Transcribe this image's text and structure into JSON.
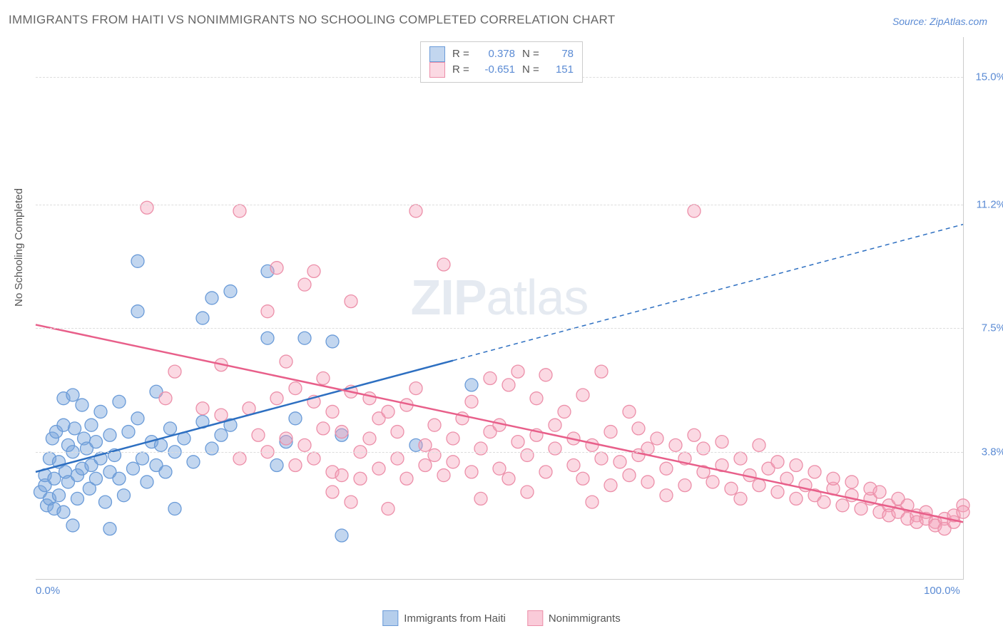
{
  "title": "IMMIGRANTS FROM HAITI VS NONIMMIGRANTS NO SCHOOLING COMPLETED CORRELATION CHART",
  "source": "Source: ZipAtlas.com",
  "watermark_bold": "ZIP",
  "watermark_light": "atlas",
  "y_axis_label": "No Schooling Completed",
  "chart": {
    "type": "scatter",
    "background_color": "#ffffff",
    "grid_color": "#dddddd",
    "axis_color": "#cccccc",
    "xlim": [
      0,
      100
    ],
    "ylim": [
      0,
      16.2
    ],
    "x_ticks": [
      {
        "v": 0,
        "label": "0.0%"
      },
      {
        "v": 100,
        "label": "100.0%"
      }
    ],
    "y_ticks": [
      {
        "v": 3.8,
        "label": "3.8%"
      },
      {
        "v": 7.5,
        "label": "7.5%"
      },
      {
        "v": 11.2,
        "label": "11.2%"
      },
      {
        "v": 15.0,
        "label": "15.0%"
      }
    ],
    "series": [
      {
        "name": "Immigrants from Haiti",
        "fill": "rgba(120,165,220,0.45)",
        "stroke": "#6a9bd8",
        "line_color": "#2d6fc1",
        "line_width": 2.5,
        "marker_radius": 9,
        "R": "0.378",
        "N": "78",
        "trend": {
          "x1": 0,
          "y1": 3.2,
          "x2": 100,
          "y2": 10.6,
          "solid_until_x": 45
        },
        "points": [
          [
            0.5,
            2.6
          ],
          [
            1,
            2.8
          ],
          [
            1,
            3.1
          ],
          [
            1.2,
            2.2
          ],
          [
            1.5,
            3.6
          ],
          [
            1.5,
            2.4
          ],
          [
            1.8,
            4.2
          ],
          [
            2,
            2.1
          ],
          [
            2,
            3.0
          ],
          [
            2.2,
            4.4
          ],
          [
            2.5,
            2.5
          ],
          [
            2.5,
            3.5
          ],
          [
            3,
            2.0
          ],
          [
            3,
            4.6
          ],
          [
            3,
            5.4
          ],
          [
            3.2,
            3.2
          ],
          [
            3.5,
            2.9
          ],
          [
            3.5,
            4.0
          ],
          [
            4,
            5.5
          ],
          [
            4,
            1.6
          ],
          [
            4,
            3.8
          ],
          [
            4.2,
            4.5
          ],
          [
            4.5,
            3.1
          ],
          [
            4.5,
            2.4
          ],
          [
            5,
            5.2
          ],
          [
            5,
            3.3
          ],
          [
            5.2,
            4.2
          ],
          [
            5.5,
            3.9
          ],
          [
            5.8,
            2.7
          ],
          [
            6,
            3.4
          ],
          [
            6,
            4.6
          ],
          [
            6.5,
            3.0
          ],
          [
            6.5,
            4.1
          ],
          [
            7,
            5.0
          ],
          [
            7,
            3.6
          ],
          [
            7.5,
            2.3
          ],
          [
            8,
            4.3
          ],
          [
            8,
            3.2
          ],
          [
            8,
            1.5
          ],
          [
            8.5,
            3.7
          ],
          [
            9,
            5.3
          ],
          [
            9,
            3.0
          ],
          [
            9.5,
            2.5
          ],
          [
            10,
            4.4
          ],
          [
            10.5,
            3.3
          ],
          [
            11,
            8.0
          ],
          [
            11,
            4.8
          ],
          [
            11,
            9.5
          ],
          [
            11.5,
            3.6
          ],
          [
            12,
            2.9
          ],
          [
            12.5,
            4.1
          ],
          [
            13,
            3.4
          ],
          [
            13,
            5.6
          ],
          [
            13.5,
            4.0
          ],
          [
            14,
            3.2
          ],
          [
            14.5,
            4.5
          ],
          [
            15,
            3.8
          ],
          [
            15,
            2.1
          ],
          [
            16,
            4.2
          ],
          [
            17,
            3.5
          ],
          [
            18,
            7.8
          ],
          [
            18,
            4.7
          ],
          [
            19,
            8.4
          ],
          [
            19,
            3.9
          ],
          [
            20,
            4.3
          ],
          [
            21,
            8.6
          ],
          [
            21,
            4.6
          ],
          [
            25,
            9.2
          ],
          [
            25,
            7.2
          ],
          [
            26,
            3.4
          ],
          [
            27,
            4.1
          ],
          [
            28,
            4.8
          ],
          [
            29,
            7.2
          ],
          [
            32,
            7.1
          ],
          [
            33,
            1.3
          ],
          [
            33,
            4.3
          ],
          [
            41,
            4.0
          ],
          [
            47,
            5.8
          ]
        ]
      },
      {
        "name": "Nonimmigrants",
        "fill": "rgba(245,160,185,0.40)",
        "stroke": "#ec8fa9",
        "line_color": "#e85f8a",
        "line_width": 2.5,
        "marker_radius": 9,
        "R": "-0.651",
        "N": "151",
        "trend": {
          "x1": 0,
          "y1": 7.6,
          "x2": 100,
          "y2": 1.7,
          "solid_until_x": 100
        },
        "points": [
          [
            12,
            11.1
          ],
          [
            14,
            5.4
          ],
          [
            15,
            6.2
          ],
          [
            18,
            5.1
          ],
          [
            20,
            4.9
          ],
          [
            20,
            6.4
          ],
          [
            22,
            3.6
          ],
          [
            22,
            11.0
          ],
          [
            23,
            5.1
          ],
          [
            24,
            4.3
          ],
          [
            25,
            3.8
          ],
          [
            25,
            8.0
          ],
          [
            26,
            5.4
          ],
          [
            26,
            9.3
          ],
          [
            27,
            4.2
          ],
          [
            27,
            6.5
          ],
          [
            28,
            5.7
          ],
          [
            28,
            3.4
          ],
          [
            29,
            4.0
          ],
          [
            29,
            8.8
          ],
          [
            30,
            3.6
          ],
          [
            30,
            5.3
          ],
          [
            30,
            9.2
          ],
          [
            31,
            4.5
          ],
          [
            31,
            6.0
          ],
          [
            32,
            3.2
          ],
          [
            32,
            5.0
          ],
          [
            32,
            2.6
          ],
          [
            33,
            4.4
          ],
          [
            33,
            3.1
          ],
          [
            34,
            2.3
          ],
          [
            34,
            5.6
          ],
          [
            34,
            8.3
          ],
          [
            35,
            3.8
          ],
          [
            35,
            3.0
          ],
          [
            36,
            4.2
          ],
          [
            36,
            5.4
          ],
          [
            37,
            3.3
          ],
          [
            37,
            4.8
          ],
          [
            38,
            2.1
          ],
          [
            38,
            5.0
          ],
          [
            39,
            3.6
          ],
          [
            39,
            4.4
          ],
          [
            40,
            5.2
          ],
          [
            40,
            3.0
          ],
          [
            41,
            5.7
          ],
          [
            41,
            11.0
          ],
          [
            42,
            3.4
          ],
          [
            42,
            4.0
          ],
          [
            43,
            3.7
          ],
          [
            43,
            4.6
          ],
          [
            44,
            3.1
          ],
          [
            44,
            9.4
          ],
          [
            45,
            4.2
          ],
          [
            45,
            3.5
          ],
          [
            46,
            4.8
          ],
          [
            47,
            3.2
          ],
          [
            47,
            5.3
          ],
          [
            48,
            3.9
          ],
          [
            48,
            2.4
          ],
          [
            49,
            4.4
          ],
          [
            49,
            6.0
          ],
          [
            50,
            3.3
          ],
          [
            50,
            4.6
          ],
          [
            51,
            5.8
          ],
          [
            51,
            3.0
          ],
          [
            52,
            4.1
          ],
          [
            52,
            6.2
          ],
          [
            53,
            3.7
          ],
          [
            53,
            2.6
          ],
          [
            54,
            4.3
          ],
          [
            54,
            5.4
          ],
          [
            55,
            3.2
          ],
          [
            55,
            6.1
          ],
          [
            56,
            3.9
          ],
          [
            56,
            4.6
          ],
          [
            57,
            5.0
          ],
          [
            58,
            3.4
          ],
          [
            58,
            4.2
          ],
          [
            59,
            5.5
          ],
          [
            59,
            3.0
          ],
          [
            60,
            4.0
          ],
          [
            60,
            2.3
          ],
          [
            61,
            3.6
          ],
          [
            61,
            6.2
          ],
          [
            62,
            2.8
          ],
          [
            62,
            4.4
          ],
          [
            63,
            3.5
          ],
          [
            64,
            3.1
          ],
          [
            64,
            5.0
          ],
          [
            65,
            3.7
          ],
          [
            65,
            4.5
          ],
          [
            66,
            2.9
          ],
          [
            66,
            3.9
          ],
          [
            67,
            4.2
          ],
          [
            68,
            3.3
          ],
          [
            68,
            2.5
          ],
          [
            69,
            4.0
          ],
          [
            70,
            3.6
          ],
          [
            70,
            2.8
          ],
          [
            71,
            4.3
          ],
          [
            71,
            11.0
          ],
          [
            72,
            3.2
          ],
          [
            72,
            3.9
          ],
          [
            73,
            2.9
          ],
          [
            74,
            4.1
          ],
          [
            74,
            3.4
          ],
          [
            75,
            2.7
          ],
          [
            76,
            3.6
          ],
          [
            76,
            2.4
          ],
          [
            77,
            3.1
          ],
          [
            78,
            2.8
          ],
          [
            78,
            4.0
          ],
          [
            79,
            3.3
          ],
          [
            80,
            2.6
          ],
          [
            80,
            3.5
          ],
          [
            81,
            3.0
          ],
          [
            82,
            2.4
          ],
          [
            82,
            3.4
          ],
          [
            83,
            2.8
          ],
          [
            84,
            2.5
          ],
          [
            84,
            3.2
          ],
          [
            85,
            2.3
          ],
          [
            86,
            2.7
          ],
          [
            86,
            3.0
          ],
          [
            87,
            2.2
          ],
          [
            88,
            2.5
          ],
          [
            88,
            2.9
          ],
          [
            89,
            2.1
          ],
          [
            90,
            2.4
          ],
          [
            90,
            2.7
          ],
          [
            91,
            2.0
          ],
          [
            91,
            2.6
          ],
          [
            92,
            2.2
          ],
          [
            92,
            1.9
          ],
          [
            93,
            2.4
          ],
          [
            93,
            2.0
          ],
          [
            94,
            1.8
          ],
          [
            94,
            2.2
          ],
          [
            95,
            1.9
          ],
          [
            95,
            1.7
          ],
          [
            96,
            1.8
          ],
          [
            96,
            2.0
          ],
          [
            97,
            1.7
          ],
          [
            97,
            1.6
          ],
          [
            98,
            1.8
          ],
          [
            98,
            1.5
          ],
          [
            99,
            1.7
          ],
          [
            99,
            1.9
          ],
          [
            100,
            2.2
          ],
          [
            100,
            2.0
          ]
        ]
      }
    ]
  },
  "legend_top_labels": {
    "R": "R =",
    "N": "N ="
  },
  "legend_bottom": [
    {
      "label": "Immigrants from Haiti",
      "fill": "rgba(120,165,220,0.55)",
      "stroke": "#6a9bd8"
    },
    {
      "label": "Nonimmigrants",
      "fill": "rgba(245,160,185,0.55)",
      "stroke": "#ec8fa9"
    }
  ]
}
